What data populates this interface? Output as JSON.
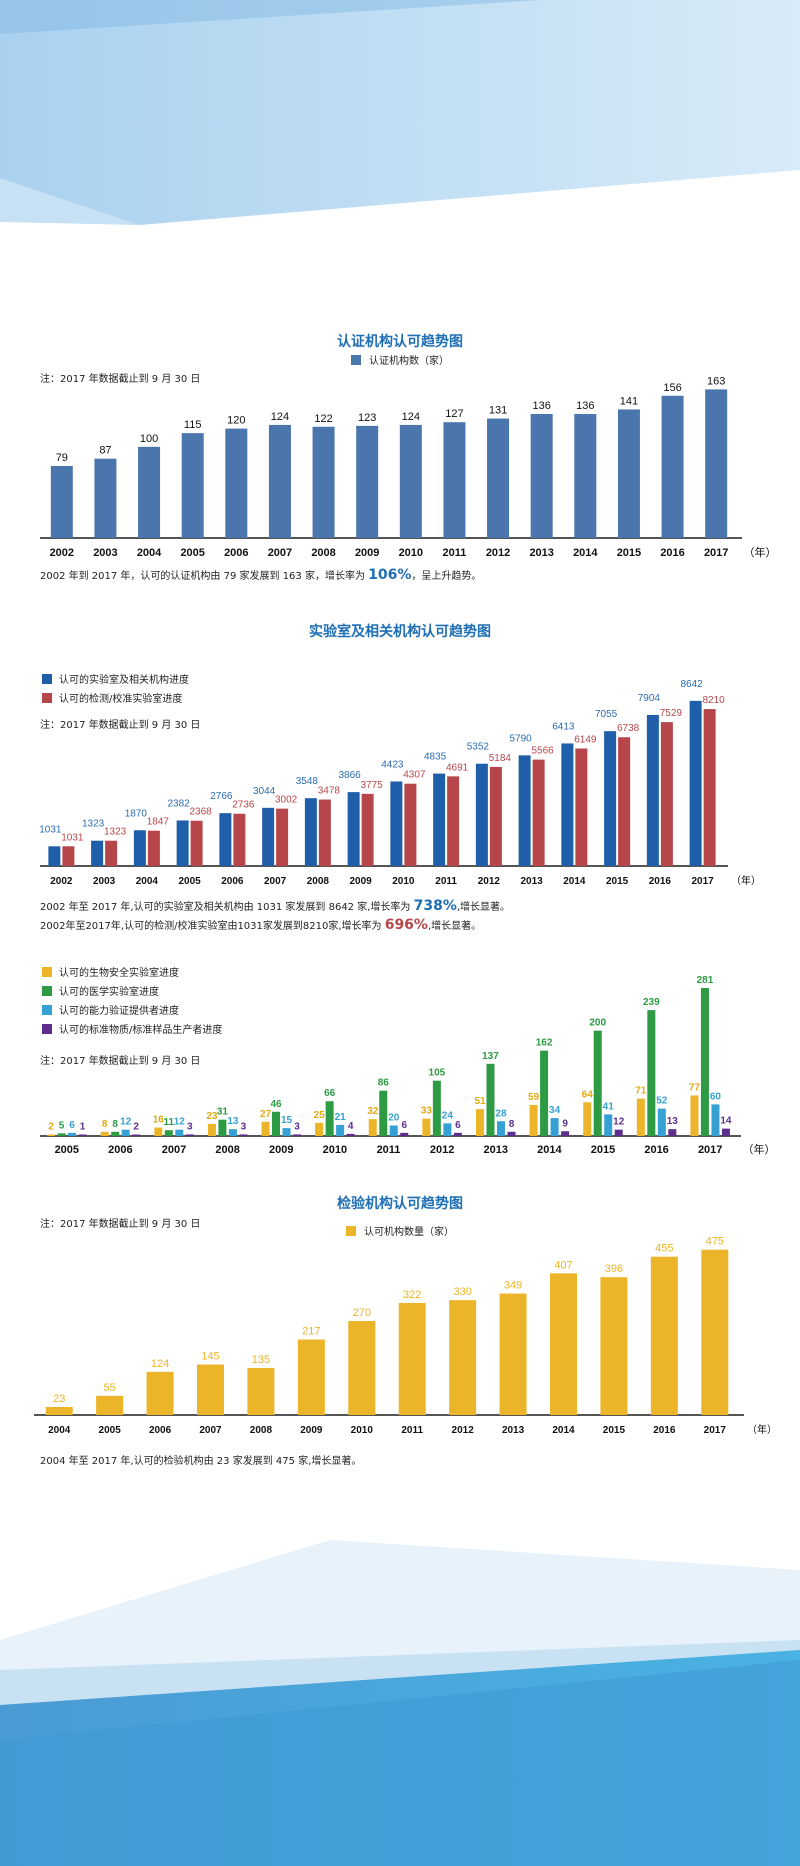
{
  "colors": {
    "blue": "#4a76ad",
    "blue2": "#1f5fa9",
    "red": "#b7464a",
    "yellow": "#ecb428",
    "green": "#2d9a44",
    "cyan": "#34a0d3",
    "purple": "#5d2e8c",
    "axis": "#555555",
    "title": "#1f6fb5"
  },
  "year_unit": "（年）",
  "charts": {
    "cert": {
      "title": "认证机构认可趋势图",
      "legend": "认证机构数（家）",
      "note": "注：2017 年数据截止到 9 月 30 日",
      "desc_pre": "2002 年到 2017 年，认可的认证机构由 79 家发展到 163 家，增长率为 ",
      "desc_rate": "106%",
      "desc_post": "，呈上升趋势。"
    },
    "lab": {
      "title": "实验室及相关机构认可趋势图",
      "legend1": "认可的实验室及相关机构进度",
      "legend2": "认可的检测/校准实验室进度",
      "note": "注：2017 年数据截止到 9 月 30 日",
      "desc1_pre": "2002 年至 2017 年,认可的实验室及相关机构由 1031 家发展到 8642 家,增长率为 ",
      "desc1_rate": "738%",
      "desc1_post": ",增长显著。",
      "desc2_pre": "2002年至2017年,认可的检测/校准实验室由1031家发展到8210家,增长率为 ",
      "desc2_rate": "696%",
      "desc2_post": ",增长显著。"
    },
    "special": {
      "legend1": "认可的生物安全实验室进度",
      "legend2": "认可的医学实验室进度",
      "legend3": "认可的能力验证提供者进度",
      "legend4": "认可的标准物质/标准样品生产者进度",
      "note": "注：2017 年数据截止到 9 月 30 日"
    },
    "insp": {
      "title": "检验机构认可趋势图",
      "legend": "认可机构数量（家）",
      "note": "注：2017 年数据截止到 9 月 30 日",
      "desc": "2004 年至 2017 年,认可的检验机构由 23 家发展到 475 家,增长显著。"
    }
  },
  "chart_data": [
    {
      "type": "bar",
      "title": "认证机构认可趋势图",
      "categories": [
        "2002",
        "2003",
        "2004",
        "2005",
        "2006",
        "2007",
        "2008",
        "2009",
        "2010",
        "2011",
        "2012",
        "2013",
        "2014",
        "2015",
        "2016",
        "2017"
      ],
      "series": [
        {
          "name": "认证机构数（家）",
          "values": [
            79,
            87,
            100,
            115,
            120,
            124,
            122,
            123,
            124,
            127,
            131,
            136,
            136,
            141,
            156,
            163
          ]
        }
      ],
      "ylim": [
        0,
        170
      ]
    },
    {
      "type": "bar",
      "title": "实验室及相关机构认可趋势图",
      "categories": [
        "2002",
        "2003",
        "2004",
        "2005",
        "2006",
        "2007",
        "2008",
        "2009",
        "2010",
        "2011",
        "2012",
        "2013",
        "2014",
        "2015",
        "2016",
        "2017"
      ],
      "series": [
        {
          "name": "认可的实验室及相关机构进度",
          "values": [
            1031,
            1323,
            1870,
            2382,
            2766,
            3044,
            3548,
            3866,
            4423,
            4835,
            5352,
            5790,
            6413,
            7055,
            7904,
            8642
          ]
        },
        {
          "name": "认可的检测/校准实验室进度",
          "values": [
            1031,
            1323,
            1847,
            2368,
            2736,
            3002,
            3478,
            3775,
            4307,
            4691,
            5184,
            5566,
            6149,
            6738,
            7529,
            8210
          ]
        }
      ],
      "ylim": [
        0,
        9000
      ]
    },
    {
      "type": "bar",
      "categories": [
        "2005",
        "2006",
        "2007",
        "2008",
        "2009",
        "2010",
        "2011",
        "2012",
        "2013",
        "2014",
        "2015",
        "2016",
        "2017"
      ],
      "series": [
        {
          "name": "认可的生物安全实验室进度",
          "values": [
            2,
            8,
            16,
            23,
            27,
            25,
            32,
            33,
            51,
            59,
            64,
            71,
            77
          ]
        },
        {
          "name": "认可的医学实验室进度",
          "values": [
            5,
            8,
            11,
            31,
            46,
            66,
            86,
            105,
            137,
            162,
            200,
            239,
            281
          ]
        },
        {
          "name": "认可的能力验证提供者进度",
          "values": [
            6,
            12,
            12,
            13,
            15,
            21,
            20,
            24,
            28,
            34,
            41,
            52,
            60
          ]
        },
        {
          "name": "认可的标准物质/标准样品生产者进度",
          "values": [
            1,
            2,
            3,
            3,
            3,
            4,
            6,
            6,
            8,
            9,
            12,
            13,
            14
          ]
        }
      ],
      "ylim": [
        0,
        300
      ]
    },
    {
      "type": "bar",
      "title": "检验机构认可趋势图",
      "categories": [
        "2004",
        "2005",
        "2006",
        "2007",
        "2008",
        "2009",
        "2010",
        "2011",
        "2012",
        "2013",
        "2014",
        "2015",
        "2016",
        "2017"
      ],
      "series": [
        {
          "name": "认可机构数量（家）",
          "values": [
            23,
            55,
            124,
            145,
            135,
            217,
            270,
            322,
            330,
            349,
            407,
            396,
            455,
            475
          ]
        }
      ],
      "ylim": [
        0,
        500
      ]
    }
  ]
}
